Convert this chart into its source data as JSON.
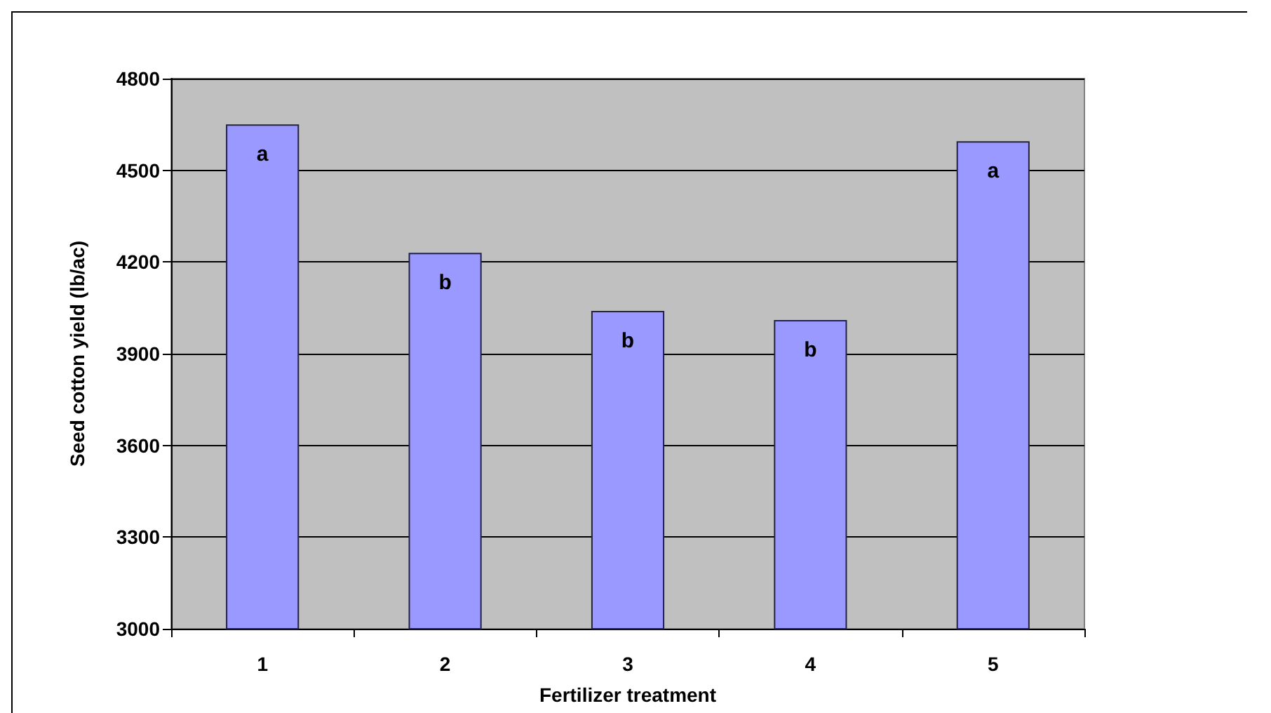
{
  "chart_data": {
    "type": "bar",
    "xlabel": "Fertilizer treatment",
    "ylabel": "Seed cotton yield (lb/ac)",
    "categories": [
      "1",
      "2",
      "3",
      "4",
      "5"
    ],
    "values": [
      4650,
      4230,
      4040,
      4010,
      4595
    ],
    "color": "#9999ff",
    "ylim": [
      3000,
      4800
    ],
    "yticks": [
      3000,
      3300,
      3600,
      3900,
      4200,
      4500,
      4800
    ],
    "grid": "y",
    "annotations": [
      "a",
      "b",
      "b",
      "b",
      "a"
    ]
  }
}
